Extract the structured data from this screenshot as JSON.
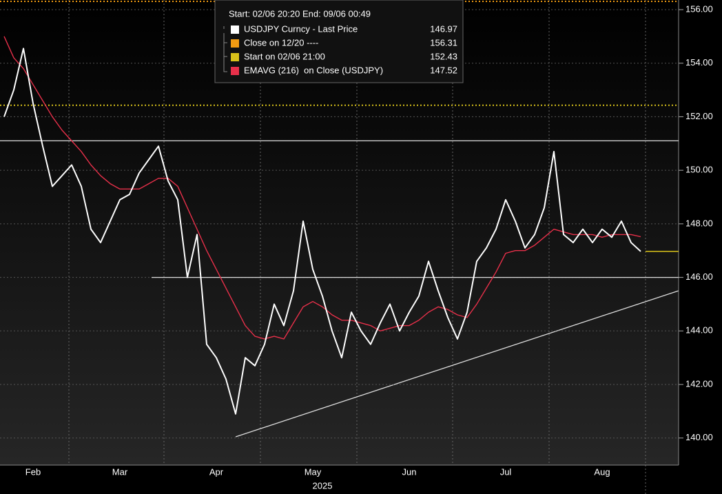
{
  "chart_data": {
    "type": "line",
    "legend_title": "Start: 02/06 20:20 End: 09/06 00:49",
    "xlabel": "2025",
    "categories": [
      null,
      null,
      null,
      "Feb",
      null,
      null,
      null,
      null,
      null,
      null,
      null,
      null,
      "Mar",
      null,
      null,
      null,
      null,
      null,
      null,
      null,
      null,
      null,
      "Apr",
      null,
      null,
      null,
      null,
      null,
      null,
      null,
      null,
      null,
      "May",
      null,
      null,
      null,
      null,
      null,
      null,
      null,
      null,
      null,
      "Jun",
      null,
      null,
      null,
      null,
      null,
      null,
      null,
      null,
      null,
      "Jul",
      null,
      null,
      null,
      null,
      null,
      null,
      null,
      null,
      null,
      "Aug",
      null,
      null,
      null,
      null
    ],
    "series": [
      {
        "name": "USDJPY Curncy - Last Price",
        "color": "#ffffff",
        "values": [
          152.0,
          153.0,
          154.55,
          152.5,
          150.9,
          149.4,
          149.8,
          150.2,
          149.4,
          147.8,
          147.3,
          148.1,
          148.9,
          149.1,
          149.9,
          150.4,
          150.9,
          149.6,
          148.9,
          146.0,
          147.6,
          143.5,
          143.0,
          142.2,
          140.9,
          143.0,
          142.7,
          143.5,
          145.0,
          144.2,
          145.5,
          148.1,
          146.3,
          145.3,
          144.0,
          143.0,
          144.7,
          144.0,
          143.5,
          144.3,
          145.0,
          144.0,
          144.7,
          145.3,
          146.6,
          145.5,
          144.5,
          143.7,
          144.7,
          146.6,
          147.1,
          147.8,
          148.9,
          148.1,
          147.1,
          147.6,
          148.6,
          150.7,
          147.6,
          147.3,
          147.8,
          147.3,
          147.8,
          147.5,
          148.1,
          147.3,
          146.97
        ]
      },
      {
        "name": "EMAVG (216)  on Close (USDJPY)",
        "color": "#e8304a",
        "values": [
          155.0,
          154.2,
          153.8,
          153.2,
          152.6,
          152.0,
          151.5,
          151.1,
          150.7,
          150.2,
          149.8,
          149.5,
          149.3,
          149.3,
          149.3,
          149.5,
          149.7,
          149.7,
          149.4,
          148.6,
          147.8,
          147.0,
          146.3,
          145.6,
          144.9,
          144.2,
          143.8,
          143.7,
          143.8,
          143.7,
          144.3,
          144.9,
          145.1,
          144.9,
          144.6,
          144.4,
          144.4,
          144.3,
          144.2,
          144.0,
          144.1,
          144.2,
          144.2,
          144.4,
          144.7,
          144.9,
          144.8,
          144.6,
          144.5,
          145.0,
          145.6,
          146.2,
          146.9,
          147.0,
          147.0,
          147.2,
          147.5,
          147.8,
          147.7,
          147.6,
          147.6,
          147.6,
          147.5,
          147.6,
          147.6,
          147.6,
          147.52
        ]
      }
    ],
    "reference_lines": [
      {
        "name": "Close on 12/20 ----",
        "color": "#f39c12",
        "value": 156.31
      },
      {
        "name": "Start on 02/06 21:00",
        "color": "#d9c21a",
        "value": 152.43
      }
    ],
    "hlines": [
      151.1,
      146.0
    ],
    "ylim": [
      138.99,
      156.36
    ],
    "yticks": [
      {
        "value": 140,
        "label": "140.00"
      },
      {
        "value": 142,
        "label": "142.00"
      },
      {
        "value": 144,
        "label": "144.00"
      },
      {
        "value": 146,
        "label": "146.00"
      },
      {
        "value": 148,
        "label": "148.00"
      },
      {
        "value": 150,
        "label": "150.00"
      },
      {
        "value": 152,
        "label": "152.00"
      },
      {
        "value": 154,
        "label": "154.00"
      },
      {
        "value": 156,
        "label": "156.00"
      }
    ],
    "grid": true
  }
}
